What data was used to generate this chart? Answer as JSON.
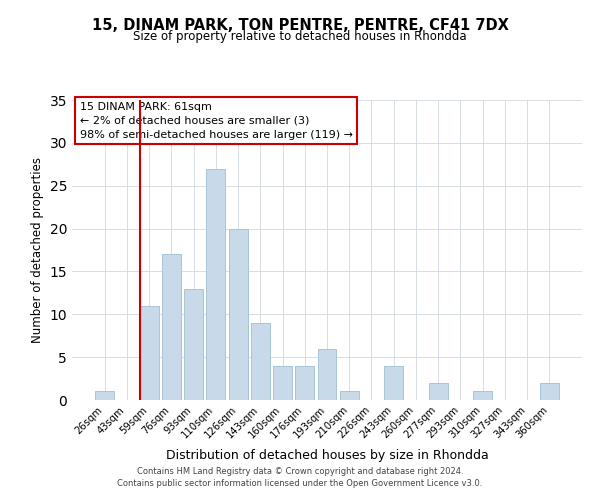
{
  "title": "15, DINAM PARK, TON PENTRE, PENTRE, CF41 7DX",
  "subtitle": "Size of property relative to detached houses in Rhondda",
  "xlabel": "Distribution of detached houses by size in Rhondda",
  "ylabel": "Number of detached properties",
  "bar_color": "#c8daea",
  "bar_edge_color": "#a8c4d8",
  "marker_color": "#cc0000",
  "categories": [
    "26sqm",
    "43sqm",
    "59sqm",
    "76sqm",
    "93sqm",
    "110sqm",
    "126sqm",
    "143sqm",
    "160sqm",
    "176sqm",
    "193sqm",
    "210sqm",
    "226sqm",
    "243sqm",
    "260sqm",
    "277sqm",
    "293sqm",
    "310sqm",
    "327sqm",
    "343sqm",
    "360sqm"
  ],
  "values": [
    1,
    0,
    11,
    17,
    13,
    27,
    20,
    9,
    4,
    4,
    6,
    1,
    0,
    4,
    0,
    2,
    0,
    1,
    0,
    0,
    2
  ],
  "ylim": [
    0,
    35
  ],
  "yticks": [
    0,
    5,
    10,
    15,
    20,
    25,
    30,
    35
  ],
  "marker_index": 2,
  "annotation_title": "15 DINAM PARK: 61sqm",
  "annotation_line1": "← 2% of detached houses are smaller (3)",
  "annotation_line2": "98% of semi-detached houses are larger (119) →",
  "footer1": "Contains HM Land Registry data © Crown copyright and database right 2024.",
  "footer2": "Contains public sector information licensed under the Open Government Licence v3.0."
}
